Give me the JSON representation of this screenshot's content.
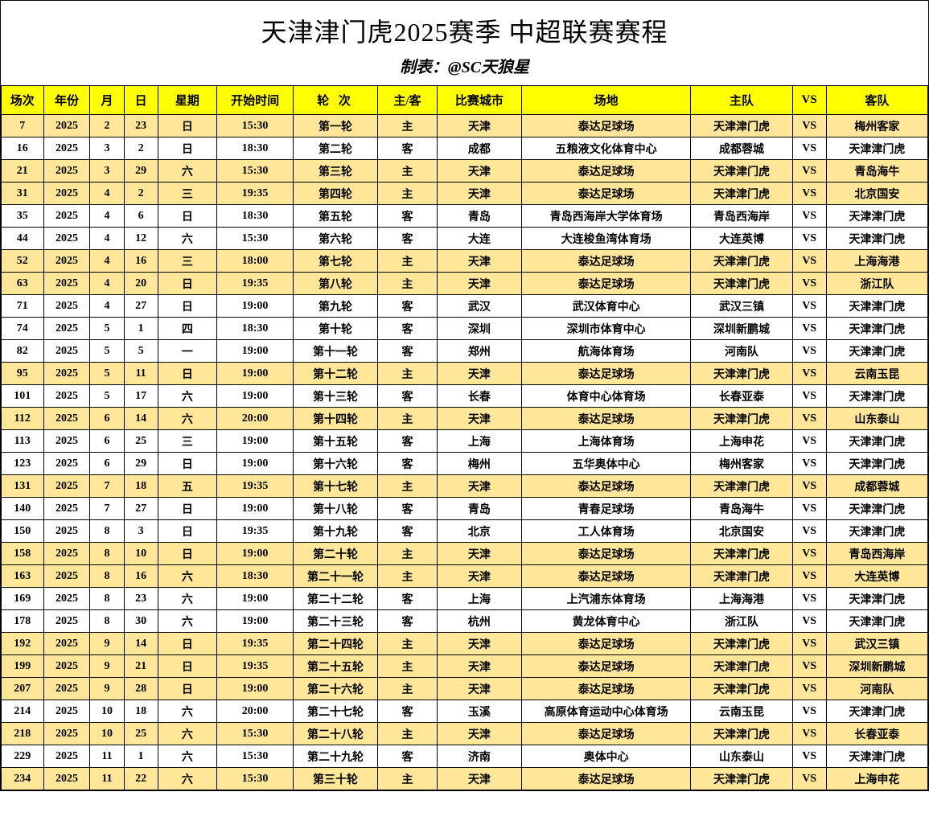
{
  "title": "天津津门虎2025赛季 中超联赛赛程",
  "subtitle": "制表：@SC天狼星",
  "colors": {
    "header_bg": "#ffff00",
    "home_bg": "#ffe699",
    "border": "#000000",
    "bg": "#ffffff"
  },
  "headers": {
    "match": "场次",
    "year": "年份",
    "month": "月",
    "day": "日",
    "dow": "星期",
    "time": "开始时间",
    "round": "轮 次",
    "ha": "主/客",
    "city": "比赛城市",
    "venue": "场地",
    "hteam": "主队",
    "vs": "VS",
    "ateam": "客队"
  },
  "rows": [
    {
      "match": "7",
      "year": "2025",
      "month": "2",
      "day": "23",
      "dow": "日",
      "time": "15:30",
      "round": "第一轮",
      "ha": "主",
      "city": "天津",
      "venue": "泰达足球场",
      "hteam": "天津津门虎",
      "vs": "VS",
      "ateam": "梅州客家"
    },
    {
      "match": "16",
      "year": "2025",
      "month": "3",
      "day": "2",
      "dow": "日",
      "time": "18:30",
      "round": "第二轮",
      "ha": "客",
      "city": "成都",
      "venue": "五粮液文化体育中心",
      "hteam": "成都蓉城",
      "vs": "VS",
      "ateam": "天津津门虎"
    },
    {
      "match": "21",
      "year": "2025",
      "month": "3",
      "day": "29",
      "dow": "六",
      "time": "15:30",
      "round": "第三轮",
      "ha": "主",
      "city": "天津",
      "venue": "泰达足球场",
      "hteam": "天津津门虎",
      "vs": "VS",
      "ateam": "青岛海牛"
    },
    {
      "match": "31",
      "year": "2025",
      "month": "4",
      "day": "2",
      "dow": "三",
      "time": "19:35",
      "round": "第四轮",
      "ha": "主",
      "city": "天津",
      "venue": "泰达足球场",
      "hteam": "天津津门虎",
      "vs": "VS",
      "ateam": "北京国安"
    },
    {
      "match": "35",
      "year": "2025",
      "month": "4",
      "day": "6",
      "dow": "日",
      "time": "18:30",
      "round": "第五轮",
      "ha": "客",
      "city": "青岛",
      "venue": "青岛西海岸大学体育场",
      "hteam": "青岛西海岸",
      "vs": "VS",
      "ateam": "天津津门虎"
    },
    {
      "match": "44",
      "year": "2025",
      "month": "4",
      "day": "12",
      "dow": "六",
      "time": "15:30",
      "round": "第六轮",
      "ha": "客",
      "city": "大连",
      "venue": "大连梭鱼湾体育场",
      "hteam": "大连英博",
      "vs": "VS",
      "ateam": "天津津门虎"
    },
    {
      "match": "52",
      "year": "2025",
      "month": "4",
      "day": "16",
      "dow": "三",
      "time": "18:00",
      "round": "第七轮",
      "ha": "主",
      "city": "天津",
      "venue": "泰达足球场",
      "hteam": "天津津门虎",
      "vs": "VS",
      "ateam": "上海海港"
    },
    {
      "match": "63",
      "year": "2025",
      "month": "4",
      "day": "20",
      "dow": "日",
      "time": "19:35",
      "round": "第八轮",
      "ha": "主",
      "city": "天津",
      "venue": "泰达足球场",
      "hteam": "天津津门虎",
      "vs": "VS",
      "ateam": "浙江队"
    },
    {
      "match": "71",
      "year": "2025",
      "month": "4",
      "day": "27",
      "dow": "日",
      "time": "19:00",
      "round": "第九轮",
      "ha": "客",
      "city": "武汉",
      "venue": "武汉体育中心",
      "hteam": "武汉三镇",
      "vs": "VS",
      "ateam": "天津津门虎"
    },
    {
      "match": "74",
      "year": "2025",
      "month": "5",
      "day": "1",
      "dow": "四",
      "time": "18:30",
      "round": "第十轮",
      "ha": "客",
      "city": "深圳",
      "venue": "深圳市体育中心",
      "hteam": "深圳新鹏城",
      "vs": "VS",
      "ateam": "天津津门虎"
    },
    {
      "match": "82",
      "year": "2025",
      "month": "5",
      "day": "5",
      "dow": "一",
      "time": "19:00",
      "round": "第十一轮",
      "ha": "客",
      "city": "郑州",
      "venue": "航海体育场",
      "hteam": "河南队",
      "vs": "VS",
      "ateam": "天津津门虎"
    },
    {
      "match": "95",
      "year": "2025",
      "month": "5",
      "day": "11",
      "dow": "日",
      "time": "19:00",
      "round": "第十二轮",
      "ha": "主",
      "city": "天津",
      "venue": "泰达足球场",
      "hteam": "天津津门虎",
      "vs": "VS",
      "ateam": "云南玉昆"
    },
    {
      "match": "101",
      "year": "2025",
      "month": "5",
      "day": "17",
      "dow": "六",
      "time": "19:00",
      "round": "第十三轮",
      "ha": "客",
      "city": "长春",
      "venue": "体育中心体育场",
      "hteam": "长春亚泰",
      "vs": "VS",
      "ateam": "天津津门虎"
    },
    {
      "match": "112",
      "year": "2025",
      "month": "6",
      "day": "14",
      "dow": "六",
      "time": "20:00",
      "round": "第十四轮",
      "ha": "主",
      "city": "天津",
      "venue": "泰达足球场",
      "hteam": "天津津门虎",
      "vs": "VS",
      "ateam": "山东泰山"
    },
    {
      "match": "113",
      "year": "2025",
      "month": "6",
      "day": "25",
      "dow": "三",
      "time": "19:00",
      "round": "第十五轮",
      "ha": "客",
      "city": "上海",
      "venue": "上海体育场",
      "hteam": "上海申花",
      "vs": "VS",
      "ateam": "天津津门虎"
    },
    {
      "match": "123",
      "year": "2025",
      "month": "6",
      "day": "29",
      "dow": "日",
      "time": "19:00",
      "round": "第十六轮",
      "ha": "客",
      "city": "梅州",
      "venue": "五华奥体中心",
      "hteam": "梅州客家",
      "vs": "VS",
      "ateam": "天津津门虎"
    },
    {
      "match": "131",
      "year": "2025",
      "month": "7",
      "day": "18",
      "dow": "五",
      "time": "19:35",
      "round": "第十七轮",
      "ha": "主",
      "city": "天津",
      "venue": "泰达足球场",
      "hteam": "天津津门虎",
      "vs": "VS",
      "ateam": "成都蓉城"
    },
    {
      "match": "140",
      "year": "2025",
      "month": "7",
      "day": "27",
      "dow": "日",
      "time": "19:00",
      "round": "第十八轮",
      "ha": "客",
      "city": "青岛",
      "venue": "青春足球场",
      "hteam": "青岛海牛",
      "vs": "VS",
      "ateam": "天津津门虎"
    },
    {
      "match": "150",
      "year": "2025",
      "month": "8",
      "day": "3",
      "dow": "日",
      "time": "19:35",
      "round": "第十九轮",
      "ha": "客",
      "city": "北京",
      "venue": "工人体育场",
      "hteam": "北京国安",
      "vs": "VS",
      "ateam": "天津津门虎"
    },
    {
      "match": "158",
      "year": "2025",
      "month": "8",
      "day": "10",
      "dow": "日",
      "time": "19:00",
      "round": "第二十轮",
      "ha": "主",
      "city": "天津",
      "venue": "泰达足球场",
      "hteam": "天津津门虎",
      "vs": "VS",
      "ateam": "青岛西海岸"
    },
    {
      "match": "163",
      "year": "2025",
      "month": "8",
      "day": "16",
      "dow": "六",
      "time": "18:30",
      "round": "第二十一轮",
      "ha": "主",
      "city": "天津",
      "venue": "泰达足球场",
      "hteam": "天津津门虎",
      "vs": "VS",
      "ateam": "大连英博"
    },
    {
      "match": "169",
      "year": "2025",
      "month": "8",
      "day": "23",
      "dow": "六",
      "time": "19:00",
      "round": "第二十二轮",
      "ha": "客",
      "city": "上海",
      "venue": "上汽浦东体育场",
      "hteam": "上海海港",
      "vs": "VS",
      "ateam": "天津津门虎"
    },
    {
      "match": "178",
      "year": "2025",
      "month": "8",
      "day": "30",
      "dow": "六",
      "time": "19:00",
      "round": "第二十三轮",
      "ha": "客",
      "city": "杭州",
      "venue": "黄龙体育中心",
      "hteam": "浙江队",
      "vs": "VS",
      "ateam": "天津津门虎"
    },
    {
      "match": "192",
      "year": "2025",
      "month": "9",
      "day": "14",
      "dow": "日",
      "time": "19:35",
      "round": "第二十四轮",
      "ha": "主",
      "city": "天津",
      "venue": "泰达足球场",
      "hteam": "天津津门虎",
      "vs": "VS",
      "ateam": "武汉三镇"
    },
    {
      "match": "199",
      "year": "2025",
      "month": "9",
      "day": "21",
      "dow": "日",
      "time": "19:35",
      "round": "第二十五轮",
      "ha": "主",
      "city": "天津",
      "venue": "泰达足球场",
      "hteam": "天津津门虎",
      "vs": "VS",
      "ateam": "深圳新鹏城"
    },
    {
      "match": "207",
      "year": "2025",
      "month": "9",
      "day": "28",
      "dow": "日",
      "time": "19:00",
      "round": "第二十六轮",
      "ha": "主",
      "city": "天津",
      "venue": "泰达足球场",
      "hteam": "天津津门虎",
      "vs": "VS",
      "ateam": "河南队"
    },
    {
      "match": "214",
      "year": "2025",
      "month": "10",
      "day": "18",
      "dow": "六",
      "time": "20:00",
      "round": "第二十七轮",
      "ha": "客",
      "city": "玉溪",
      "venue": "高原体育运动中心体育场",
      "hteam": "云南玉昆",
      "vs": "VS",
      "ateam": "天津津门虎"
    },
    {
      "match": "218",
      "year": "2025",
      "month": "10",
      "day": "25",
      "dow": "六",
      "time": "15:30",
      "round": "第二十八轮",
      "ha": "主",
      "city": "天津",
      "venue": "泰达足球场",
      "hteam": "天津津门虎",
      "vs": "VS",
      "ateam": "长春亚泰"
    },
    {
      "match": "229",
      "year": "2025",
      "month": "11",
      "day": "1",
      "dow": "六",
      "time": "15:30",
      "round": "第二十九轮",
      "ha": "客",
      "city": "济南",
      "venue": "奥体中心",
      "hteam": "山东泰山",
      "vs": "VS",
      "ateam": "天津津门虎"
    },
    {
      "match": "234",
      "year": "2025",
      "month": "11",
      "day": "22",
      "dow": "六",
      "time": "15:30",
      "round": "第三十轮",
      "ha": "主",
      "city": "天津",
      "venue": "泰达足球场",
      "hteam": "天津津门虎",
      "vs": "VS",
      "ateam": "上海申花"
    }
  ]
}
